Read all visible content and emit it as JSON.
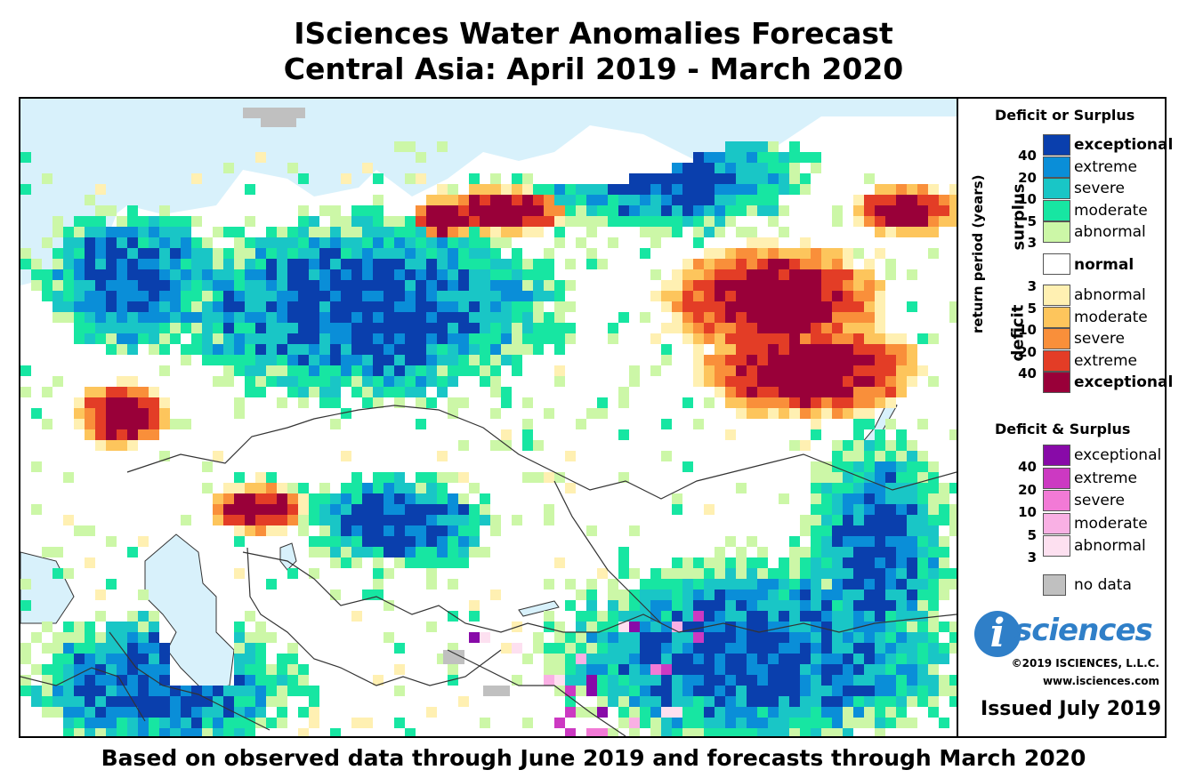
{
  "title_line1": "ISciences Water Anomalies Forecast",
  "title_line2": "Central Asia: April 2019 - March 2020",
  "footer": "Based on observed data through June 2019 and forecasts through March 2020",
  "legend": {
    "title_single": "Deficit or Surplus",
    "title_combined": "Deficit & Surplus",
    "axis_label": "return period (years)",
    "surplus_label": "surplus",
    "deficit_label": "deficit",
    "surplus_classes": [
      {
        "label": "exceptional",
        "color": "#0a3fad"
      },
      {
        "label": "extreme",
        "color": "#0a8ed8"
      },
      {
        "label": "severe",
        "color": "#19c6c6"
      },
      {
        "label": "moderate",
        "color": "#17e6a2"
      },
      {
        "label": "abnormal",
        "color": "#ccf7a7"
      }
    ],
    "normal_label": "normal",
    "deficit_classes": [
      {
        "label": "abnormal",
        "color": "#fff0b2"
      },
      {
        "label": "moderate",
        "color": "#fdc55c"
      },
      {
        "label": "severe",
        "color": "#f98f3a"
      },
      {
        "label": "extreme",
        "color": "#e33d26"
      },
      {
        "label": "exceptional",
        "color": "#990039"
      }
    ],
    "combined_classes": [
      {
        "label": "exceptional",
        "color": "#880aa8"
      },
      {
        "label": "extreme",
        "color": "#cc39c2"
      },
      {
        "label": "severe",
        "color": "#f27ad6"
      },
      {
        "label": "moderate",
        "color": "#f9b0e4"
      },
      {
        "label": "abnormal",
        "color": "#fde0f0"
      }
    ],
    "surplus_ticks": [
      "40",
      "20",
      "10",
      "5",
      "3"
    ],
    "deficit_ticks": [
      "3",
      "5",
      "10",
      "20",
      "40"
    ],
    "combined_ticks": [
      "40",
      "20",
      "10",
      "5",
      "3"
    ],
    "no_data_label": "no data",
    "no_data_color": "#c0c0c0"
  },
  "logo": {
    "letter": "i",
    "text": "sciences"
  },
  "copyright": "©2019 ISCIENCES, L.L.C.",
  "website": "www.isciences.com",
  "issued": "Issued July 2019",
  "colors": {
    "water": "#d8f1fb",
    "land_normal": "#ffffff",
    "brand_blue": "#2f7fc8"
  }
}
